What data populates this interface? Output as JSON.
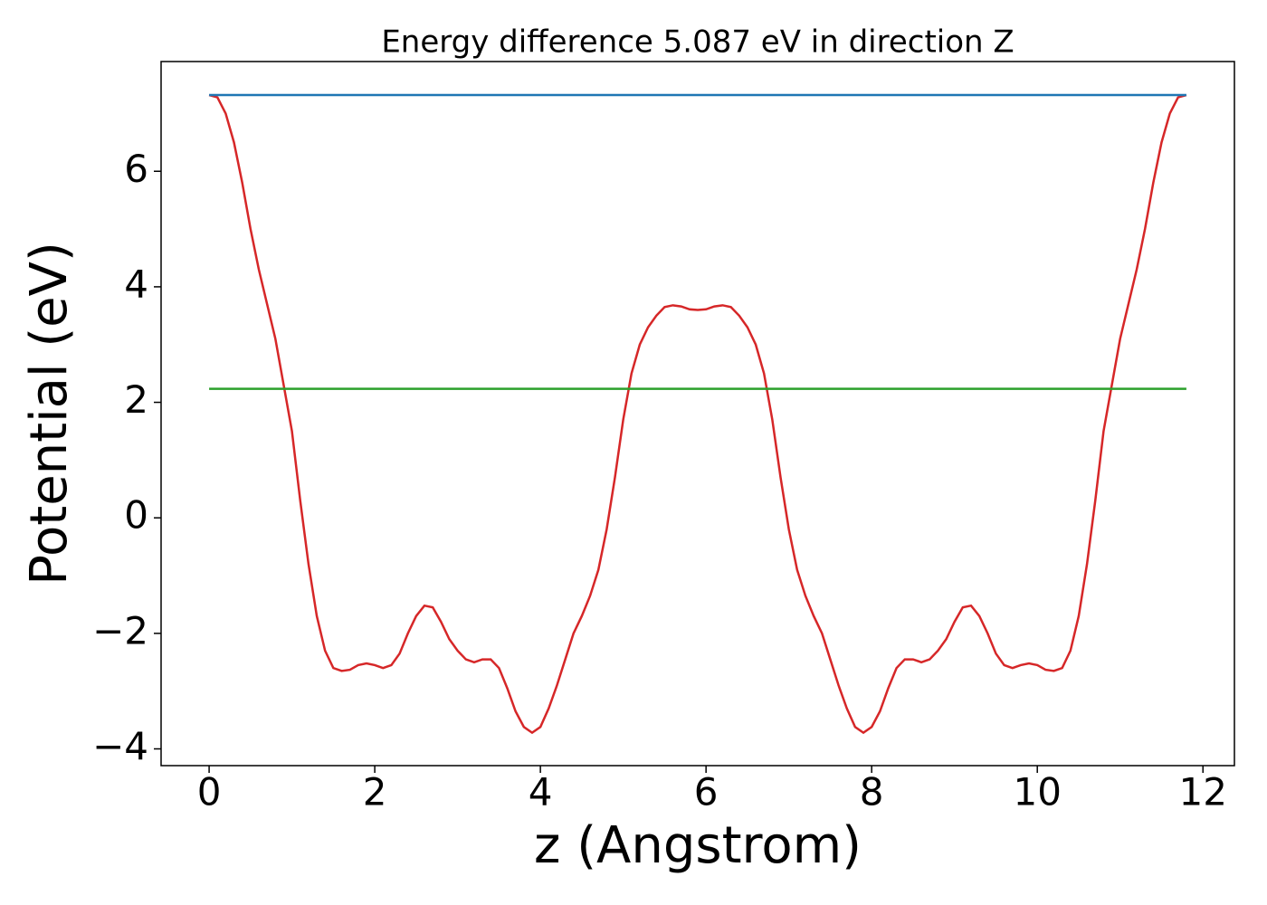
{
  "chart_data": {
    "type": "line",
    "title": "Energy difference 5.087 eV in direction Z",
    "xlabel": "z (Angstrom)",
    "ylabel": "Potential (eV)",
    "xlim": [
      -0.58,
      12.38
    ],
    "ylim": [
      -4.29,
      7.9
    ],
    "xticks": [
      0,
      2,
      4,
      6,
      8,
      10,
      12
    ],
    "yticks": [
      {
        "value": -4,
        "label": "−4"
      },
      {
        "value": -2,
        "label": "−2"
      },
      0,
      2,
      4,
      6
    ],
    "series": [
      {
        "color": "#d62728",
        "x": [
          0,
          0.1,
          0.2,
          0.3,
          0.4,
          0.5,
          0.6,
          0.7,
          0.8,
          0.9,
          1.0,
          1.1,
          1.2,
          1.3,
          1.4,
          1.5,
          1.6,
          1.7,
          1.8,
          1.9,
          2.0,
          2.1,
          2.2,
          2.3,
          2.4,
          2.5,
          2.6,
          2.7,
          2.8,
          2.9,
          3.0,
          3.1,
          3.2,
          3.3,
          3.4,
          3.5,
          3.6,
          3.7,
          3.8,
          3.9,
          4.0,
          4.1,
          4.2,
          4.3,
          4.4,
          4.5,
          4.6,
          4.7,
          4.8,
          4.9,
          5.0,
          5.1,
          5.2,
          5.3,
          5.4,
          5.5,
          5.6,
          5.7,
          5.8,
          5.9,
          6.0,
          6.1,
          6.2,
          6.3,
          6.4,
          6.5,
          6.6,
          6.7,
          6.8,
          6.9,
          7.0,
          7.1,
          7.2,
          7.3,
          7.4,
          7.5,
          7.6,
          7.7,
          7.8,
          7.9,
          8.0,
          8.1,
          8.2,
          8.3,
          8.4,
          8.5,
          8.6,
          8.7,
          8.8,
          8.9,
          9.0,
          9.1,
          9.2,
          9.3,
          9.4,
          9.5,
          9.6,
          9.7,
          9.8,
          9.9,
          10.0,
          10.1,
          10.2,
          10.3,
          10.4,
          10.5,
          10.6,
          10.7,
          10.8,
          10.9,
          11.0,
          11.1,
          11.2,
          11.3,
          11.4,
          11.5,
          11.6,
          11.7,
          11.8
        ],
        "values": [
          7.32,
          7.28,
          7.0,
          6.5,
          5.8,
          5.0,
          4.3,
          3.7,
          3.1,
          2.3,
          1.5,
          0.3,
          -0.8,
          -1.7,
          -2.3,
          -2.6,
          -2.65,
          -2.63,
          -2.55,
          -2.52,
          -2.55,
          -2.6,
          -2.55,
          -2.35,
          -2.0,
          -1.7,
          -1.52,
          -1.55,
          -1.8,
          -2.1,
          -2.3,
          -2.45,
          -2.5,
          -2.45,
          -2.45,
          -2.6,
          -2.95,
          -3.35,
          -3.62,
          -3.72,
          -3.62,
          -3.3,
          -2.9,
          -2.45,
          -2.0,
          -1.7,
          -1.35,
          -0.9,
          -0.2,
          0.7,
          1.7,
          2.5,
          3.0,
          3.3,
          3.5,
          3.65,
          3.68,
          3.66,
          3.61,
          3.6,
          3.61,
          3.66,
          3.68,
          3.65,
          3.5,
          3.3,
          3.0,
          2.5,
          1.7,
          0.7,
          -0.2,
          -0.9,
          -1.35,
          -1.7,
          -2.0,
          -2.45,
          -2.9,
          -3.3,
          -3.62,
          -3.72,
          -3.62,
          -3.35,
          -2.95,
          -2.6,
          -2.45,
          -2.45,
          -2.5,
          -2.45,
          -2.3,
          -2.1,
          -1.8,
          -1.55,
          -1.52,
          -1.7,
          -2.0,
          -2.35,
          -2.55,
          -2.6,
          -2.55,
          -2.52,
          -2.55,
          -2.63,
          -2.65,
          -2.6,
          -2.3,
          -1.7,
          -0.8,
          0.3,
          1.5,
          2.3,
          3.1,
          3.7,
          4.3,
          5.0,
          5.8,
          6.5,
          7.0,
          7.28,
          7.32
        ]
      },
      {
        "color": "#1f77b4",
        "x": [
          0,
          11.8
        ],
        "values": [
          7.32,
          7.32
        ]
      },
      {
        "color": "#2ca02c",
        "x": [
          0,
          11.8
        ],
        "values": [
          2.233,
          2.233
        ]
      }
    ]
  }
}
